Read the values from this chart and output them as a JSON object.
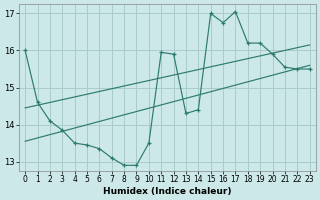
{
  "xlabel": "Humidex (Indice chaleur)",
  "bg_color": "#cce8e8",
  "grid_color": "#aacccc",
  "line_color": "#2d7b6f",
  "xlim": [
    -0.5,
    23.5
  ],
  "ylim": [
    12.75,
    17.25
  ],
  "yticks": [
    13,
    14,
    15,
    16,
    17
  ],
  "xticks": [
    0,
    1,
    2,
    3,
    4,
    5,
    6,
    7,
    8,
    9,
    10,
    11,
    12,
    13,
    14,
    15,
    16,
    17,
    18,
    19,
    20,
    21,
    22,
    23
  ],
  "line1_x": [
    0,
    1,
    2,
    3,
    4,
    5,
    6,
    7,
    8,
    9,
    10,
    11,
    12,
    13,
    14,
    15,
    16,
    17,
    18,
    19,
    20,
    21,
    22,
    23
  ],
  "line1_y": [
    16.0,
    14.6,
    14.1,
    13.85,
    13.5,
    13.45,
    13.35,
    13.1,
    12.9,
    12.9,
    13.5,
    15.95,
    15.9,
    14.3,
    14.4,
    17.0,
    16.75,
    17.05,
    16.2,
    16.2,
    15.9,
    15.55,
    15.5,
    15.5
  ],
  "line2_x": [
    0,
    23
  ],
  "line2_y": [
    13.55,
    15.6
  ],
  "line3_x": [
    0,
    23
  ],
  "line3_y": [
    14.45,
    16.15
  ]
}
